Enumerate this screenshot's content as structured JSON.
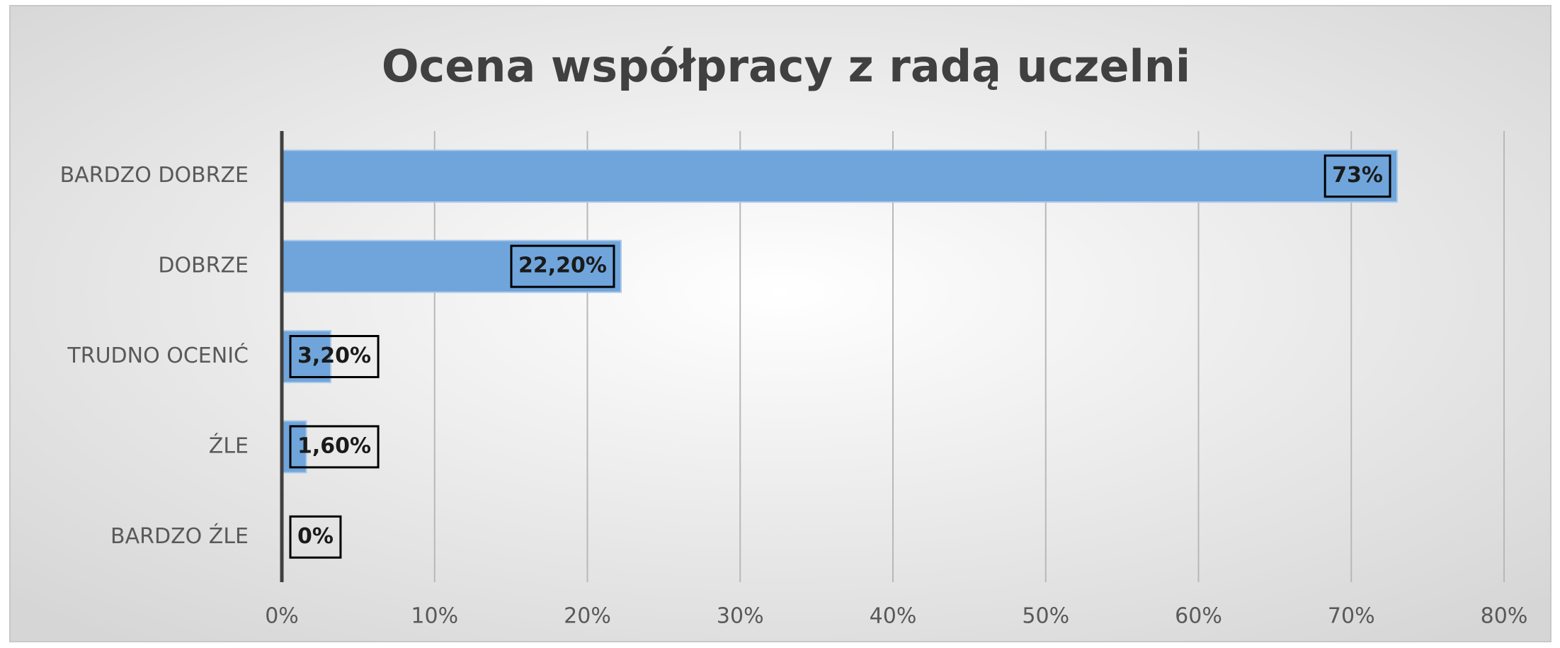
{
  "chart_data": {
    "type": "bar",
    "orientation": "horizontal",
    "title": "Ocena współpracy z radą uczelni",
    "categories": [
      "BARDZO DOBRZE",
      "DOBRZE",
      "TRUDNO OCENIĆ",
      "ŹLE",
      "BARDZO ŹLE"
    ],
    "values": [
      73,
      22.2,
      3.2,
      1.6,
      0
    ],
    "value_labels": [
      "73%",
      "22,20%",
      "3,20%",
      "1,60%",
      "0%"
    ],
    "color": "#6fa5db",
    "xlim": [
      0,
      80
    ],
    "xticks": [
      {
        "value": 0,
        "label": "0%"
      },
      {
        "value": 10,
        "label": "10%"
      },
      {
        "value": 20,
        "label": "20%"
      },
      {
        "value": 30,
        "label": "30%"
      },
      {
        "value": 40,
        "label": "40%"
      },
      {
        "value": 50,
        "label": "50%"
      },
      {
        "value": 60,
        "label": "60%"
      },
      {
        "value": 70,
        "label": "70%"
      },
      {
        "value": 80,
        "label": "80%"
      }
    ],
    "grid": true
  }
}
